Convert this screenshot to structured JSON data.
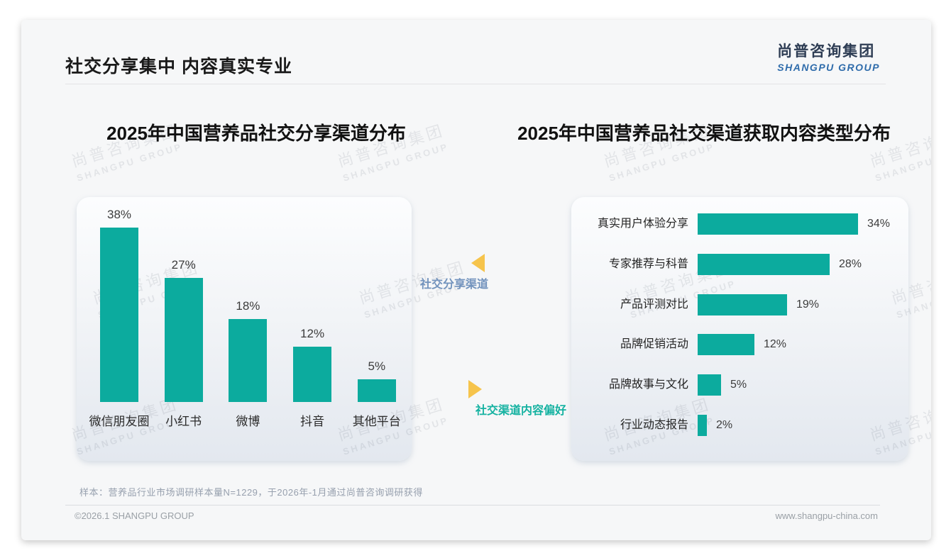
{
  "header": {
    "title": "社交分享集中 内容真实专业",
    "logo": {
      "chinese": "尚普咨询集团",
      "english": "SHANGPU GROUP"
    }
  },
  "watermark": {
    "line1": "尚普咨询集团",
    "line2": "SHANGPU GROUP"
  },
  "middle": {
    "top_label": "社交分享渠道",
    "bottom_label": "社交渠道内容偏好"
  },
  "footnote": "样本：营养品行业市场调研样本量N=1229，于2026年-1月通过尚普咨询调研获得",
  "footer": {
    "left": "©2026.1 SHANGPU GROUP",
    "right": "www.shangpu-china.com"
  },
  "colors": {
    "bar_teal": "#0cab9e",
    "accent_yellow": "#f6c44c",
    "callout_blue": "#7293bd",
    "callout_teal": "#15b2a1",
    "logo_navy": "#2e3d54",
    "logo_blue": "#2f6cab"
  },
  "chart_data": [
    {
      "type": "bar",
      "orientation": "vertical",
      "title": "2025年中国营养品社交分享渠道分布",
      "categories": [
        "微信朋友圈",
        "小红书",
        "微博",
        "抖音",
        "其他平台"
      ],
      "values": [
        38,
        27,
        18,
        12,
        5
      ],
      "unit": "%",
      "ylim": [
        0,
        40
      ],
      "grid": false,
      "legend": "none",
      "data_labels": "above bars"
    },
    {
      "type": "bar",
      "orientation": "horizontal",
      "title": "2025年中国营养品社交渠道获取内容类型分布",
      "categories": [
        "真实用户体验分享",
        "专家推荐与科普",
        "产品评测对比",
        "品牌促销活动",
        "品牌故事与文化",
        "行业动态报告"
      ],
      "values": [
        34,
        28,
        19,
        12,
        5,
        2
      ],
      "unit": "%",
      "xlim": [
        0,
        40
      ],
      "grid": false,
      "legend": "none",
      "data_labels": "right of bars"
    }
  ]
}
